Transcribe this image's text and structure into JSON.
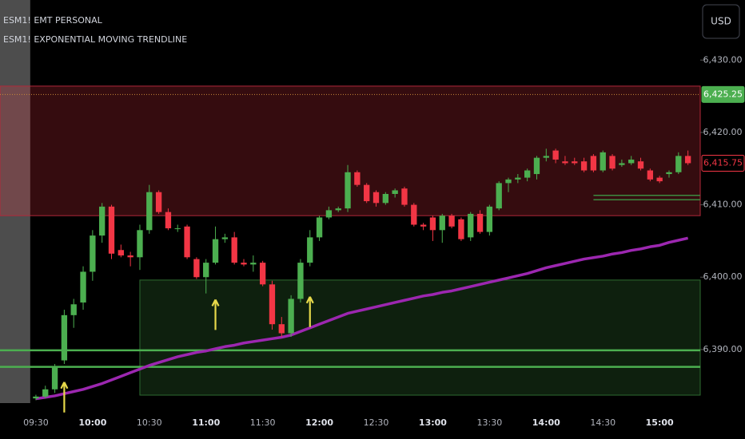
{
  "chart_data": {
    "type": "candlestick",
    "title": "ESM1! EMT PERSONAL",
    "subtitle": "ESM1! EXPONENTIAL MOVING TRENDLINE",
    "currency": "USD",
    "categories": [
      "09:30",
      null,
      null,
      null,
      null,
      null,
      "10:00",
      null,
      null,
      null,
      null,
      null,
      "10:30",
      null,
      null,
      null,
      null,
      null,
      "11:00",
      null,
      null,
      null,
      null,
      null,
      "11:30",
      null,
      null,
      null,
      null,
      null,
      "12:00",
      null,
      null,
      null,
      null,
      null,
      "12:30",
      null,
      null,
      null,
      null,
      null,
      "13:00",
      null,
      null,
      null,
      null,
      null,
      "13:30",
      null,
      null,
      null,
      null,
      null,
      "14:00",
      null,
      null,
      null,
      null,
      null,
      "14:30",
      null,
      null,
      null,
      null,
      null,
      "15:00",
      null,
      null,
      null
    ],
    "xlim": [
      -3.8,
      70.3
    ],
    "ylim": [
      6382.6,
      6438.3
    ],
    "yticks": [
      {
        "value": 6430,
        "label": "6,430.00"
      },
      {
        "value": 6420,
        "label": "6,420.00"
      },
      {
        "value": 6410,
        "label": "6,410.00"
      },
      {
        "value": 6400,
        "label": "6,400.00"
      },
      {
        "value": 6390,
        "label": "6,390.00"
      }
    ],
    "up_color": "#4caf50",
    "down_color": "#f23645",
    "open": [
      6383.25,
      6383.5,
      6384.5,
      6388.5,
      6394.75,
      6396.5,
      6400.75,
      6405.75,
      6409.75,
      6403.75,
      6403,
      6402.75,
      6406.5,
      6411.75,
      6409,
      6406.75,
      6407,
      6402.5,
      6400,
      6402,
      6405.25,
      6405.5,
      6402,
      6401.75,
      6402,
      6399,
      6393.5,
      6392.25,
      6397,
      6402,
      6405.5,
      6408.25,
      6409.25,
      6409.5,
      6414.5,
      6412.75,
      6411.75,
      6410.25,
      6411.5,
      6412.25,
      6410,
      6407.25,
      6408.25,
      6406.5,
      6408.5,
      6408,
      6405.5,
      6408.75,
      6406.25,
      6409.5,
      6413,
      6413.5,
      6413.75,
      6414.25,
      6416.5,
      6417.5,
      6416,
      6416,
      6416,
      6416.75,
      6414.75,
      6416.75,
      6415.5,
      6415.75,
      6416,
      6414.75,
      6413.75,
      6414.25,
      6414.5,
      6416.75
    ],
    "high": [
      6383.75,
      6385,
      6388,
      6395.5,
      6397,
      6401.5,
      6406.5,
      6410.25,
      6410,
      6404.5,
      6403.5,
      6407.25,
      6412.75,
      6412,
      6409.5,
      6407.25,
      6407.25,
      6402.75,
      6402.5,
      6407,
      6406,
      6406.25,
      6402.5,
      6403,
      6402.25,
      6399.5,
      6394.5,
      6397.5,
      6402.5,
      6406.5,
      6408.5,
      6409.75,
      6409.75,
      6415.5,
      6414.75,
      6413,
      6412,
      6411.75,
      6412.25,
      6412.5,
      6410.25,
      6407.5,
      6408.5,
      6408.75,
      6408.75,
      6408.25,
      6409,
      6409.25,
      6410,
      6413.25,
      6413.75,
      6414.25,
      6415,
      6416.75,
      6417.75,
      6417.75,
      6416.75,
      6416.5,
      6416.5,
      6417,
      6417.5,
      6417,
      6416.25,
      6416.75,
      6416.5,
      6415,
      6414,
      6414.75,
      6417.25,
      6417.5
    ],
    "low": [
      6383,
      6383.25,
      6384,
      6388,
      6393,
      6395.5,
      6399.5,
      6404.75,
      6402.5,
      6402.75,
      6401.5,
      6401,
      6406,
      6408.75,
      6406.5,
      6406.25,
      6402.5,
      6399.75,
      6397.75,
      6401.75,
      6404.75,
      6401.75,
      6401.5,
      6400.75,
      6398.75,
      6392.75,
      6391.75,
      6391.75,
      6396.5,
      6401.5,
      6405,
      6408,
      6409,
      6409,
      6412.5,
      6410.25,
      6409.75,
      6410,
      6411,
      6409.75,
      6407,
      6406.5,
      6405,
      6404.75,
      6406.75,
      6405,
      6405,
      6406,
      6405.75,
      6409.25,
      6411.75,
      6413,
      6413.25,
      6413.5,
      6416,
      6415.75,
      6415.5,
      6415.5,
      6414.5,
      6414.5,
      6414.5,
      6414.75,
      6415.25,
      6415.5,
      6414.75,
      6413.25,
      6413,
      6413.75,
      6414.25,
      6415.5
    ],
    "close": [
      6383.5,
      6384.5,
      6387.5,
      6394.75,
      6396.25,
      6400.75,
      6405.75,
      6409.75,
      6403.25,
      6403,
      6402.75,
      6406.5,
      6411.75,
      6409,
      6406.75,
      6406.75,
      6402.75,
      6400,
      6402,
      6405.25,
      6405.5,
      6402,
      6401.75,
      6402,
      6399,
      6393.5,
      6392.25,
      6397,
      6402,
      6405.5,
      6408.25,
      6409.25,
      6409.5,
      6414.5,
      6412.75,
      6410.5,
      6410.25,
      6411.5,
      6412,
      6410,
      6407.25,
      6407,
      6406.5,
      6408.5,
      6407,
      6405.25,
      6408.75,
      6406.25,
      6409.75,
      6413,
      6413.5,
      6413.75,
      6414.75,
      6416.5,
      6416.75,
      6416.25,
      6415.75,
      6415.75,
      6414.75,
      6414.75,
      6417.25,
      6415,
      6415.75,
      6416.25,
      6415,
      6413.5,
      6413.25,
      6414.5,
      6416.75,
      6415.75
    ],
    "ema": {
      "color": "#9c27b0",
      "values": [
        6383.2,
        6383.4,
        6383.6,
        6383.9,
        6384.2,
        6384.5,
        6384.9,
        6385.3,
        6385.8,
        6386.3,
        6386.8,
        6387.3,
        6387.8,
        6388.2,
        6388.6,
        6389.0,
        6389.3,
        6389.6,
        6389.8,
        6390.1,
        6390.4,
        6390.6,
        6390.9,
        6391.1,
        6391.3,
        6391.5,
        6391.7,
        6392.0,
        6392.5,
        6393.0,
        6393.5,
        6394.0,
        6394.5,
        6395.0,
        6395.3,
        6395.6,
        6395.9,
        6396.2,
        6396.5,
        6396.8,
        6397.1,
        6397.4,
        6397.6,
        6397.9,
        6398.1,
        6398.4,
        6398.7,
        6399.0,
        6399.3,
        6399.6,
        6399.9,
        6400.2,
        6400.5,
        6400.9,
        6401.3,
        6401.6,
        6401.9,
        6402.2,
        6402.5,
        6402.7,
        6402.9,
        6403.2,
        6403.4,
        6403.7,
        6403.9,
        6404.2,
        6404.4,
        6404.8,
        6405.1,
        6405.4
      ]
    },
    "zones": [
      {
        "top": 6426.4,
        "bottom": 6408.5,
        "fill": "rgba(242,54,69,0.22)",
        "stroke": "#b2283a"
      },
      {
        "top": 6399.6,
        "bottom": 6383.7,
        "start": 11,
        "fill": "rgba(76,175,80,0.18)",
        "stroke": "#2e6b30"
      }
    ],
    "levels": [
      {
        "value": 6389.9,
        "color": "#4caf50"
      },
      {
        "value": 6387.6,
        "color": "#4caf50"
      },
      {
        "value": 6411.3,
        "start": 59,
        "color": "#3d8b40"
      },
      {
        "value": 6410.7,
        "start": 59,
        "color": "#3d8b40"
      }
    ],
    "up_arrows": [
      {
        "index": 3,
        "price": 6385.5
      },
      {
        "index": 19,
        "price": 6396.9
      },
      {
        "index": 29,
        "price": 6397.3
      }
    ],
    "arrow_color": "#e6d84a",
    "price_labels": [
      {
        "value": 6425.25,
        "label": "6,425.25",
        "color": "#4caf50",
        "filled": true,
        "dotted": true
      },
      {
        "value": 6415.75,
        "label": "6,415.75",
        "color": "#f23645",
        "filled": false
      }
    ],
    "premarket_end": -0.6
  }
}
